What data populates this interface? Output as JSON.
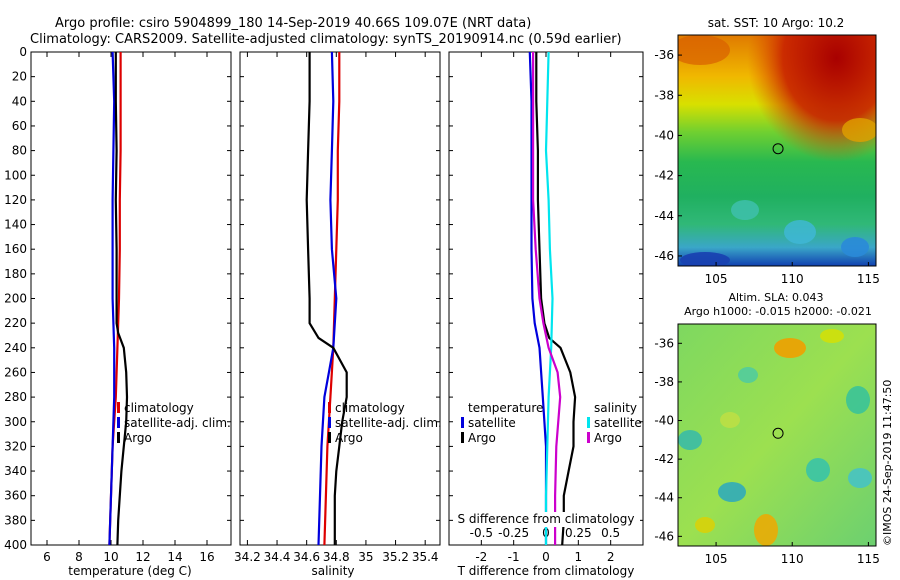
{
  "header": {
    "line1": "Argo profile: csiro 5904899_180 14-Sep-2019 40.66S 109.07E (NRT data)",
    "line2": "Climatology: CARS2009. Satellite-adjusted climatology: synTS_20190914.nc (0.59d earlier)"
  },
  "colors": {
    "climatology": "#dd0000",
    "satellite": "#0000dd",
    "argo": "#000000",
    "sat_salinity": "#00e5ee",
    "argo_salinity": "#cc00cc"
  },
  "depth_axis": {
    "ticks": [
      "0",
      "20",
      "40",
      "60",
      "80",
      "100",
      "120",
      "140",
      "160",
      "180",
      "200",
      "220",
      "240",
      "260",
      "280",
      "300",
      "320",
      "340",
      "360",
      "380",
      "400"
    ]
  },
  "chart_data": [
    {
      "type": "line",
      "name": "temperature-profile",
      "xlabel": "temperature (deg C)",
      "ylabel": "depth",
      "xlim": [
        5,
        17.5
      ],
      "ylim": [
        400,
        0
      ],
      "xticks": [
        "6",
        "8",
        "10",
        "12",
        "14",
        "16"
      ],
      "xtick_values": [
        6,
        8,
        10,
        12,
        14,
        16
      ],
      "legend": [
        "climatology",
        "satellite-adj. clim.",
        "Argo"
      ],
      "series": [
        {
          "name": "climatology",
          "depth": [
            0,
            40,
            80,
            120,
            160,
            200,
            240,
            280,
            320,
            360,
            400
          ],
          "values": [
            10.6,
            10.6,
            10.6,
            10.55,
            10.55,
            10.5,
            10.4,
            10.3,
            10.1,
            10.0,
            9.9
          ]
        },
        {
          "name": "satellite-adj. clim.",
          "depth": [
            0,
            40,
            80,
            120,
            160,
            200,
            240,
            280,
            320,
            360,
            400
          ],
          "values": [
            10.1,
            10.2,
            10.15,
            10.1,
            10.1,
            10.1,
            10.2,
            10.2,
            10.1,
            10.0,
            9.9
          ]
        },
        {
          "name": "Argo",
          "depth": [
            0,
            40,
            80,
            120,
            160,
            200,
            220,
            228,
            240,
            260,
            280,
            300,
            320,
            340,
            360,
            380,
            400
          ],
          "values": [
            10.3,
            10.3,
            10.35,
            10.3,
            10.35,
            10.35,
            10.35,
            10.45,
            10.8,
            10.95,
            11.0,
            10.95,
            10.8,
            10.65,
            10.55,
            10.45,
            10.4
          ]
        }
      ]
    },
    {
      "type": "line",
      "name": "salinity-profile",
      "xlabel": "salinity",
      "ylabel": "depth",
      "xlim": [
        34.15,
        35.5
      ],
      "ylim": [
        400,
        0
      ],
      "xticks": [
        "34.2",
        "34.4",
        "34.6",
        "34.8",
        "35",
        "35.2",
        "35.4"
      ],
      "xtick_values": [
        34.2,
        34.4,
        34.6,
        34.8,
        35.0,
        35.2,
        35.4
      ],
      "legend": [
        "climatology",
        "satellite-adj. clim.",
        "Argo"
      ],
      "series": [
        {
          "name": "climatology",
          "depth": [
            0,
            40,
            80,
            120,
            160,
            200,
            240,
            280,
            320,
            360,
            400
          ],
          "values": [
            34.82,
            34.82,
            34.81,
            34.81,
            34.8,
            34.79,
            34.78,
            34.76,
            34.74,
            34.73,
            34.72
          ]
        },
        {
          "name": "satellite-adj. clim.",
          "depth": [
            0,
            40,
            80,
            120,
            160,
            200,
            240,
            260,
            280,
            320,
            360,
            400
          ],
          "values": [
            34.77,
            34.78,
            34.77,
            34.76,
            34.77,
            34.8,
            34.78,
            34.75,
            34.72,
            34.7,
            34.69,
            34.68
          ]
        },
        {
          "name": "Argo",
          "depth": [
            0,
            40,
            80,
            120,
            160,
            200,
            220,
            232,
            240,
            260,
            280,
            300,
            320,
            340,
            360,
            380,
            400
          ],
          "values": [
            34.62,
            34.62,
            34.61,
            34.6,
            34.61,
            34.62,
            34.62,
            34.68,
            34.78,
            34.87,
            34.87,
            34.84,
            34.82,
            34.8,
            34.79,
            34.79,
            34.79
          ]
        }
      ]
    },
    {
      "type": "line",
      "name": "difference-from-climatology",
      "xlabel": "T difference from climatology",
      "xlabel_top": "S difference from climatology",
      "ylim": [
        400,
        0
      ],
      "xlim": [
        -3,
        3
      ],
      "xticks": [
        "-2",
        "-1",
        "0",
        "1",
        "2"
      ],
      "xtick_values": [
        -2,
        -1,
        0,
        1,
        2
      ],
      "s_xlim": [
        -0.75,
        0.75
      ],
      "s_xticks": [
        "-0.5",
        "-0.25",
        "0",
        "0.25",
        "0.5"
      ],
      "s_xtick_values": [
        -0.5,
        -0.25,
        0,
        0.25,
        0.5
      ],
      "legend_temperature": {
        "title": "temperature",
        "items": [
          "satellite",
          "Argo"
        ]
      },
      "legend_salinity": {
        "title": "salinity",
        "items": [
          "satellite",
          "Argo"
        ]
      },
      "series": [
        {
          "name": "T satellite",
          "axis": "T",
          "depth": [
            0,
            40,
            80,
            120,
            160,
            200,
            220,
            240,
            280,
            320,
            360,
            400
          ],
          "values": [
            -0.5,
            -0.45,
            -0.45,
            -0.45,
            -0.45,
            -0.42,
            -0.35,
            -0.2,
            -0.1,
            0.0,
            0.0,
            0.0
          ]
        },
        {
          "name": "T Argo",
          "axis": "T",
          "depth": [
            0,
            40,
            80,
            120,
            160,
            200,
            220,
            232,
            240,
            260,
            280,
            300,
            320,
            340,
            360,
            380,
            400
          ],
          "values": [
            -0.3,
            -0.3,
            -0.25,
            -0.25,
            -0.2,
            -0.15,
            -0.05,
            0.1,
            0.45,
            0.75,
            0.9,
            0.85,
            0.85,
            0.7,
            0.55,
            0.55,
            0.5
          ]
        },
        {
          "name": "S satellite",
          "axis": "S",
          "depth": [
            0,
            40,
            80,
            120,
            160,
            200,
            240,
            280,
            320,
            360,
            400
          ],
          "values": [
            0.02,
            0.01,
            0.0,
            0.02,
            0.03,
            0.05,
            0.04,
            0.02,
            0.01,
            0.0,
            0.0
          ]
        },
        {
          "name": "S Argo",
          "axis": "S",
          "depth": [
            0,
            40,
            80,
            120,
            160,
            200,
            220,
            240,
            260,
            280,
            320,
            360,
            400
          ],
          "values": [
            -0.1,
            -0.1,
            -0.1,
            -0.1,
            -0.08,
            -0.05,
            -0.02,
            0.02,
            0.09,
            0.11,
            0.08,
            0.07,
            0.07
          ]
        }
      ]
    },
    {
      "type": "heatmap",
      "name": "sst-map",
      "title": "sat. SST: 10 Argo: 10.2",
      "xlim": [
        102.5,
        115.5
      ],
      "ylim": [
        -46.5,
        -35
      ],
      "xticks": [
        "105",
        "110",
        "115"
      ],
      "xtick_values": [
        105,
        110,
        115
      ],
      "yticks": [
        "-36",
        "-38",
        "-40",
        "-42",
        "-44",
        "-46"
      ],
      "ytick_values": [
        -36,
        -38,
        -40,
        -42,
        -44,
        -46
      ],
      "marker": {
        "lon": 109.07,
        "lat": -40.66
      }
    },
    {
      "type": "heatmap",
      "name": "sla-map",
      "title": "Altim. SLA: 0.043",
      "subtitle": "Argo h1000: -0.015 h2000: -0.021",
      "xlim": [
        102.5,
        115.5
      ],
      "ylim": [
        -46.5,
        -35
      ],
      "xticks": [
        "105",
        "110",
        "115"
      ],
      "xtick_values": [
        105,
        110,
        115
      ],
      "yticks": [
        "-36",
        "-38",
        "-40",
        "-42",
        "-44",
        "-46"
      ],
      "ytick_values": [
        -36,
        -38,
        -40,
        -42,
        -44,
        -46
      ],
      "marker": {
        "lon": 109.07,
        "lat": -40.66
      }
    }
  ],
  "footer": {
    "credit": "©IMOS 24-Sep-2019 11:47:50"
  }
}
